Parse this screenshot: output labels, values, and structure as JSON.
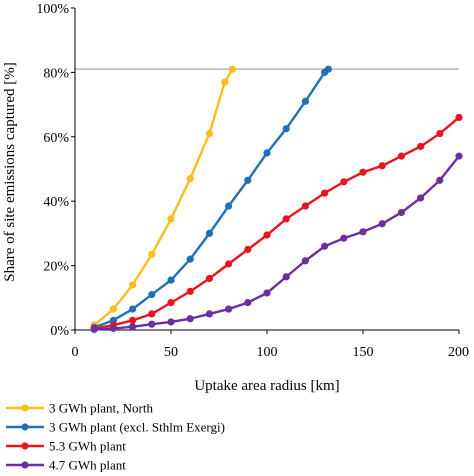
{
  "chart_data": {
    "type": "line",
    "xlabel": "Uptake area radius [km]",
    "ylabel": "Share of site emissions captured [%]",
    "xlim": [
      0,
      200
    ],
    "ylim": [
      0,
      100
    ],
    "xticks": [
      "0",
      "50",
      "100",
      "150",
      "200"
    ],
    "xtick_values": [
      0,
      50,
      100,
      150,
      200
    ],
    "yticks": [
      "0%",
      "20%",
      "40%",
      "60%",
      "80%",
      "100%"
    ],
    "ytick_values": [
      0,
      20,
      40,
      60,
      80,
      100
    ],
    "reference_line_y": 81,
    "reference_line_color": "#c8c8c8",
    "grid": false,
    "legend_position": "bottom-left",
    "series": [
      {
        "name": "3 GWh plant, North",
        "color": "#f9be1a",
        "x": [
          10,
          20,
          30,
          40,
          50,
          60,
          70,
          78,
          82
        ],
        "y": [
          1.5,
          6.5,
          14,
          23.5,
          34.5,
          47,
          61,
          77,
          81
        ]
      },
      {
        "name": "3 GWh plant (excl. Sthlm Exergi)",
        "color": "#2070b8",
        "x": [
          10,
          20,
          30,
          40,
          50,
          60,
          70,
          80,
          90,
          100,
          110,
          120,
          130,
          132
        ],
        "y": [
          0.8,
          3,
          6.5,
          11,
          15.5,
          22,
          30,
          38.5,
          46.5,
          55,
          62.5,
          71,
          80,
          81
        ]
      },
      {
        "name": "5.3 GWh plant",
        "color": "#e8141e",
        "x": [
          10,
          20,
          30,
          40,
          50,
          60,
          70,
          80,
          90,
          100,
          110,
          120,
          130,
          140,
          150,
          160,
          170,
          180,
          190,
          200
        ],
        "y": [
          0.5,
          1.5,
          3,
          5,
          8.5,
          12,
          16,
          20.5,
          25,
          29.5,
          34.5,
          38.5,
          42.5,
          46,
          49,
          51,
          54,
          57,
          61,
          66
        ]
      },
      {
        "name": "4.7 GWh plant",
        "color": "#6a2fa0",
        "x": [
          10,
          20,
          30,
          40,
          50,
          60,
          70,
          80,
          90,
          100,
          110,
          120,
          130,
          140,
          150,
          160,
          170,
          180,
          190,
          200
        ],
        "y": [
          0.2,
          0.5,
          1,
          1.8,
          2.5,
          3.5,
          5,
          6.5,
          8.5,
          11.5,
          16.5,
          21.5,
          26,
          28.5,
          30.5,
          33,
          36.5,
          41,
          46.5,
          54
        ]
      }
    ]
  }
}
